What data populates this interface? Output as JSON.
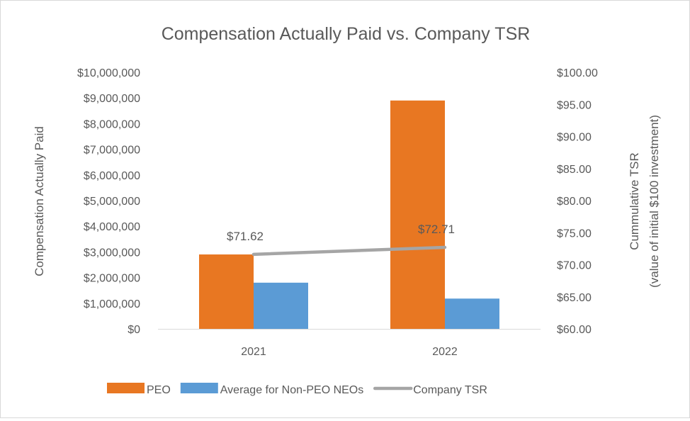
{
  "chart_data": {
    "type": "bar",
    "title": "Compensation  Actually Paid vs. Company TSR",
    "categories": [
      "2021",
      "2022"
    ],
    "series": [
      {
        "name": "PEO",
        "kind": "bar",
        "axis": "left",
        "values": [
          2900000,
          8900000
        ],
        "color": "#e87722"
      },
      {
        "name": "Average for Non-PEO NEOs",
        "kind": "bar",
        "axis": "left",
        "values": [
          1800000,
          1180000
        ],
        "color": "#5b9bd5"
      },
      {
        "name": "Company TSR",
        "kind": "line",
        "axis": "right",
        "values": [
          71.62,
          72.71
        ],
        "labels": [
          "$71.62",
          "$72.71"
        ],
        "color": "#a5a5a5"
      }
    ],
    "ylabel": "Compensation Actually Paid",
    "y2label_line1": "Cummulative TSR",
    "y2label_line2": "(value of initial $100 investment)",
    "ylim": [
      0,
      10000000
    ],
    "y2lim": [
      60,
      100
    ],
    "yticks": [
      "$0",
      "$1,000,000",
      "$2,000,000",
      "$3,000,000",
      "$4,000,000",
      "$5,000,000",
      "$6,000,000",
      "$7,000,000",
      "$8,000,000",
      "$9,000,000",
      "$10,000,000"
    ],
    "y2ticks": [
      "$60.00",
      "$65.00",
      "$70.00",
      "$75.00",
      "$80.00",
      "$85.00",
      "$90.00",
      "$95.00",
      "$100.00"
    ],
    "legend_position": "bottom",
    "grid": false
  }
}
